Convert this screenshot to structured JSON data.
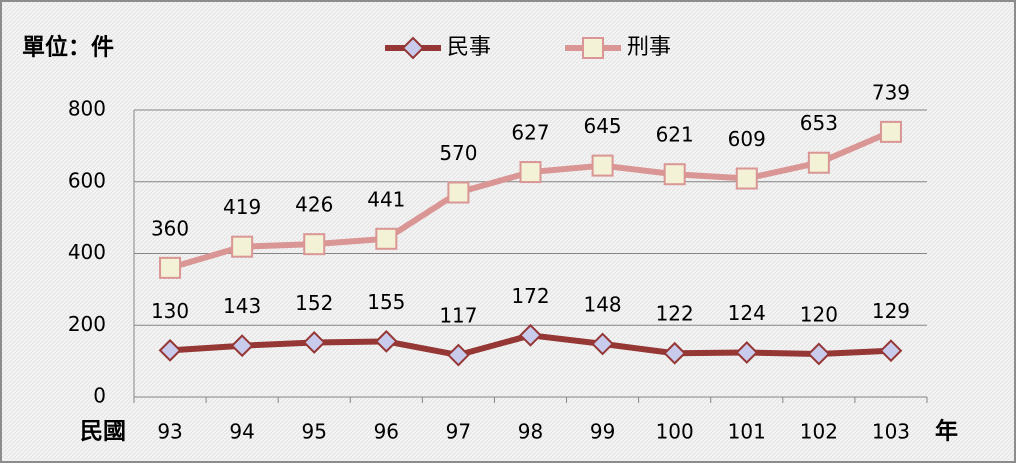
{
  "chart_data": {
    "type": "line",
    "y_unit_label": "單位：件",
    "x_label_prefix": "民國",
    "x_label_suffix": "年",
    "categories": [
      "93",
      "94",
      "95",
      "96",
      "97",
      "98",
      "99",
      "100",
      "101",
      "102",
      "103"
    ],
    "series": [
      {
        "name": "民事",
        "color": "#953735",
        "marker": "diamond",
        "marker_fill": "#c9cbed",
        "values": [
          130,
          143,
          152,
          155,
          117,
          172,
          148,
          122,
          124,
          120,
          129
        ]
      },
      {
        "name": "刑事",
        "color": "#d99694",
        "marker": "square",
        "marker_fill": "#f3f1d6",
        "values": [
          360,
          419,
          426,
          441,
          570,
          627,
          645,
          621,
          609,
          653,
          739
        ]
      }
    ],
    "ylim": [
      0,
      800
    ],
    "yticks": [
      0,
      200,
      400,
      600,
      800
    ],
    "grid": true,
    "legend": "top"
  }
}
